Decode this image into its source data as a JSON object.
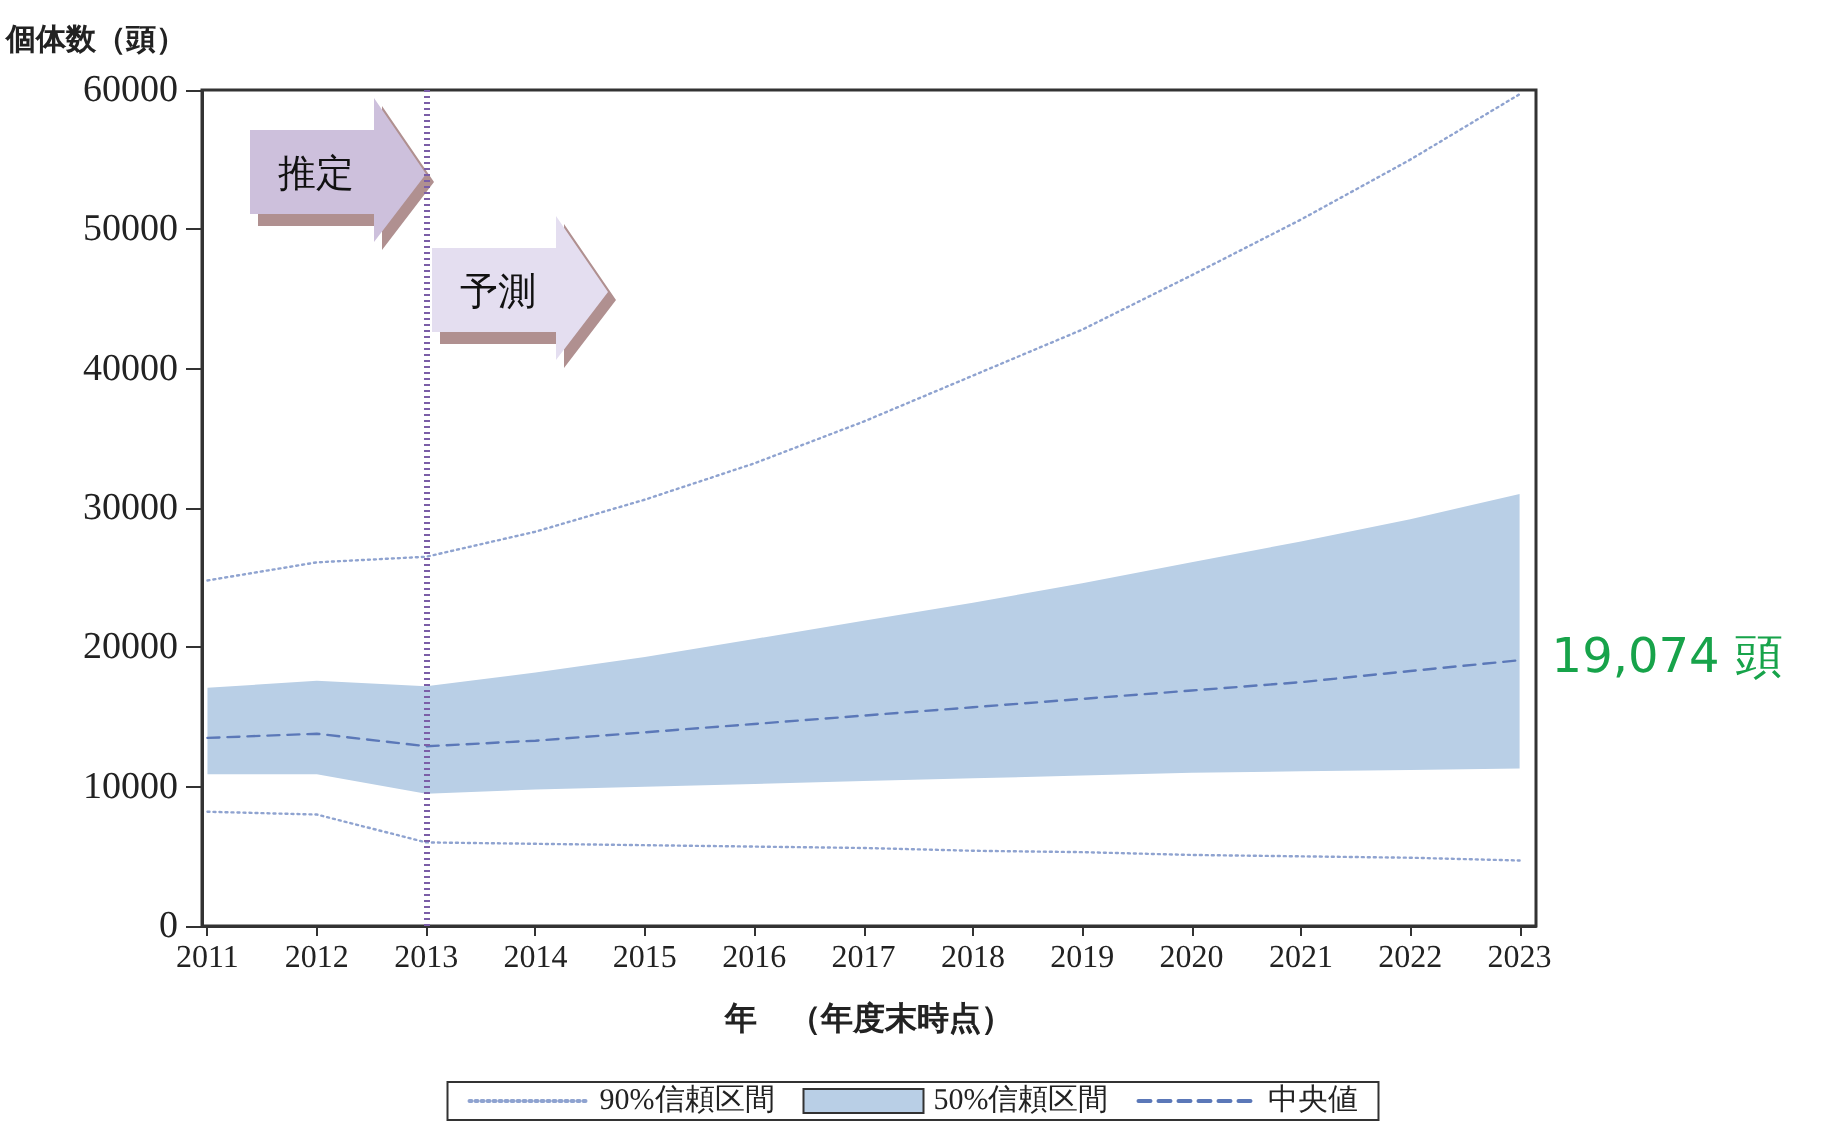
{
  "chart_data": {
    "type": "line",
    "ylabel": "個体数（頭）",
    "xlabel": "年　（年度末時点）",
    "x": [
      2011,
      2012,
      2013,
      2014,
      2015,
      2016,
      2017,
      2018,
      2019,
      2020,
      2021,
      2022,
      2023
    ],
    "xlim": [
      2010.95,
      2023.15
    ],
    "xticks": [
      2011,
      2012,
      2013,
      2014,
      2015,
      2016,
      2017,
      2018,
      2019,
      2020,
      2021,
      2022,
      2023
    ],
    "ylim": [
      0,
      60000
    ],
    "yticks": [
      0,
      10000,
      20000,
      30000,
      40000,
      50000,
      60000
    ],
    "grid": false,
    "legend": "bottom",
    "marker": "none",
    "series": [
      {
        "name": "90%信頼区間",
        "line_style": "dotted",
        "color": "#8fa3d0",
        "values": [
          24800,
          26100,
          26500,
          28300,
          30600,
          33200,
          36200,
          39500,
          42800,
          46700,
          50700,
          55000,
          59700
        ]
      },
      {
        "line_style": "dotted",
        "color": "#8fa3d0",
        "values": [
          8200,
          8000,
          6000,
          5900,
          5800,
          5700,
          5600,
          5400,
          5300,
          5100,
          5000,
          4900,
          4700
        ]
      },
      {
        "name": "中央値",
        "line_style": "dashed",
        "color": "#5b78b8",
        "values": [
          13500,
          13800,
          12900,
          13300,
          13900,
          14500,
          15100,
          15700,
          16300,
          16900,
          17500,
          18300,
          19074
        ],
        "lower": [
          10900,
          10900,
          9500,
          9800,
          10000,
          10200,
          10400,
          10600,
          10800,
          11000,
          11100,
          11200,
          11300
        ],
        "upper": [
          17100,
          17600,
          17200,
          18200,
          19300,
          20600,
          21900,
          23200,
          24600,
          26100,
          27600,
          29200,
          31000
        ]
      }
    ],
    "ref_lines": [
      {
        "axis": "x",
        "value": 2013,
        "color": "#7b5ea7",
        "line_style": "dotted"
      }
    ],
    "annotations": [
      "50%信頼区間",
      {
        "text": "推定",
        "x": 2013,
        "y": 54000
      },
      "予測",
      {
        "text": "19,074 頭",
        "x": 2023,
        "y": 19074
      }
    ]
  }
}
